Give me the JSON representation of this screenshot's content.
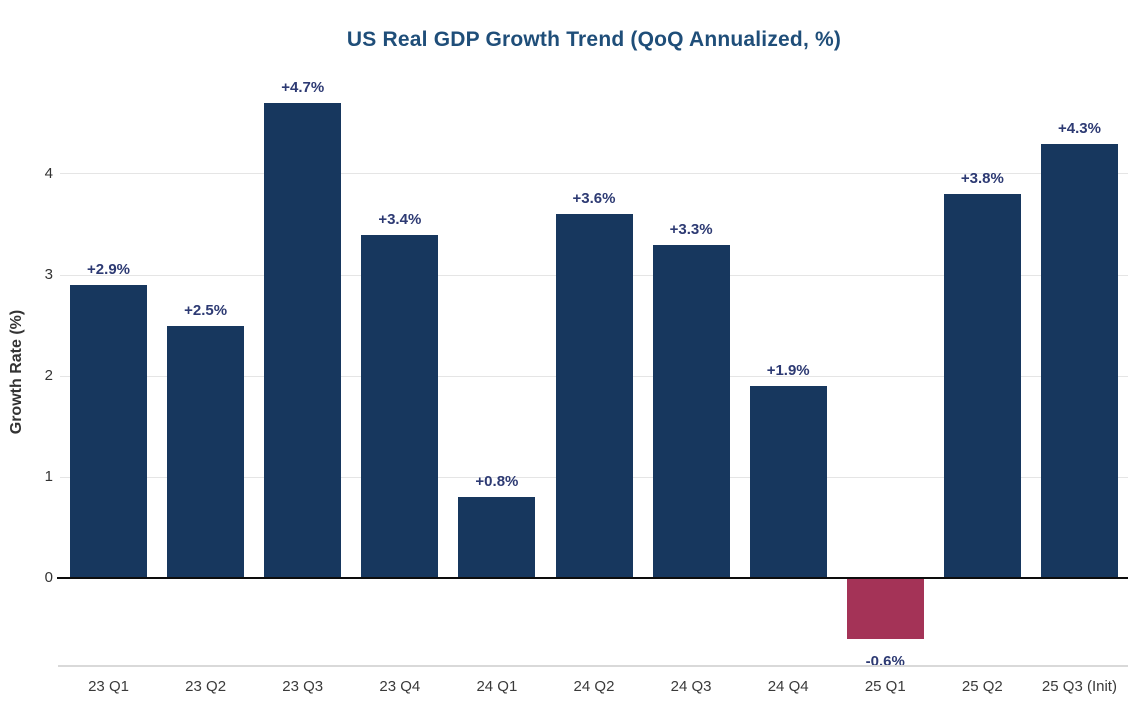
{
  "chart_data": {
    "type": "bar",
    "title": "US Real GDP Growth Trend (QoQ Annualized, %)",
    "ylabel": "Growth Rate (%)",
    "xlabel": "",
    "categories": [
      "23 Q1",
      "23 Q2",
      "23 Q3",
      "23 Q4",
      "24 Q1",
      "24 Q2",
      "24 Q3",
      "24 Q4",
      "25 Q1",
      "25 Q2",
      "25 Q3 (Init)"
    ],
    "values": [
      2.9,
      2.5,
      4.7,
      3.4,
      0.8,
      3.6,
      3.3,
      1.9,
      -0.6,
      3.8,
      4.3
    ],
    "data_labels": [
      "+2.9%",
      "+2.5%",
      "+4.7%",
      "+3.4%",
      "+0.8%",
      "+3.6%",
      "+3.3%",
      "+1.9%",
      "-0.6%",
      "+3.8%",
      "+4.3%"
    ],
    "y_ticks": [
      0,
      1,
      2,
      3,
      4
    ],
    "ylim": [
      -0.87,
      4.95
    ],
    "grid": true,
    "legend": "none",
    "colors": {
      "bar_positive": "#17375E",
      "bar_negative": "#A43357",
      "title": "#1F4E79",
      "data_label": "#2D3A73",
      "axis_text": "#333333",
      "gridline": "#E5E5E5",
      "zero_line": "#0d0d0d",
      "axis_line": "#D9D9D9"
    }
  }
}
